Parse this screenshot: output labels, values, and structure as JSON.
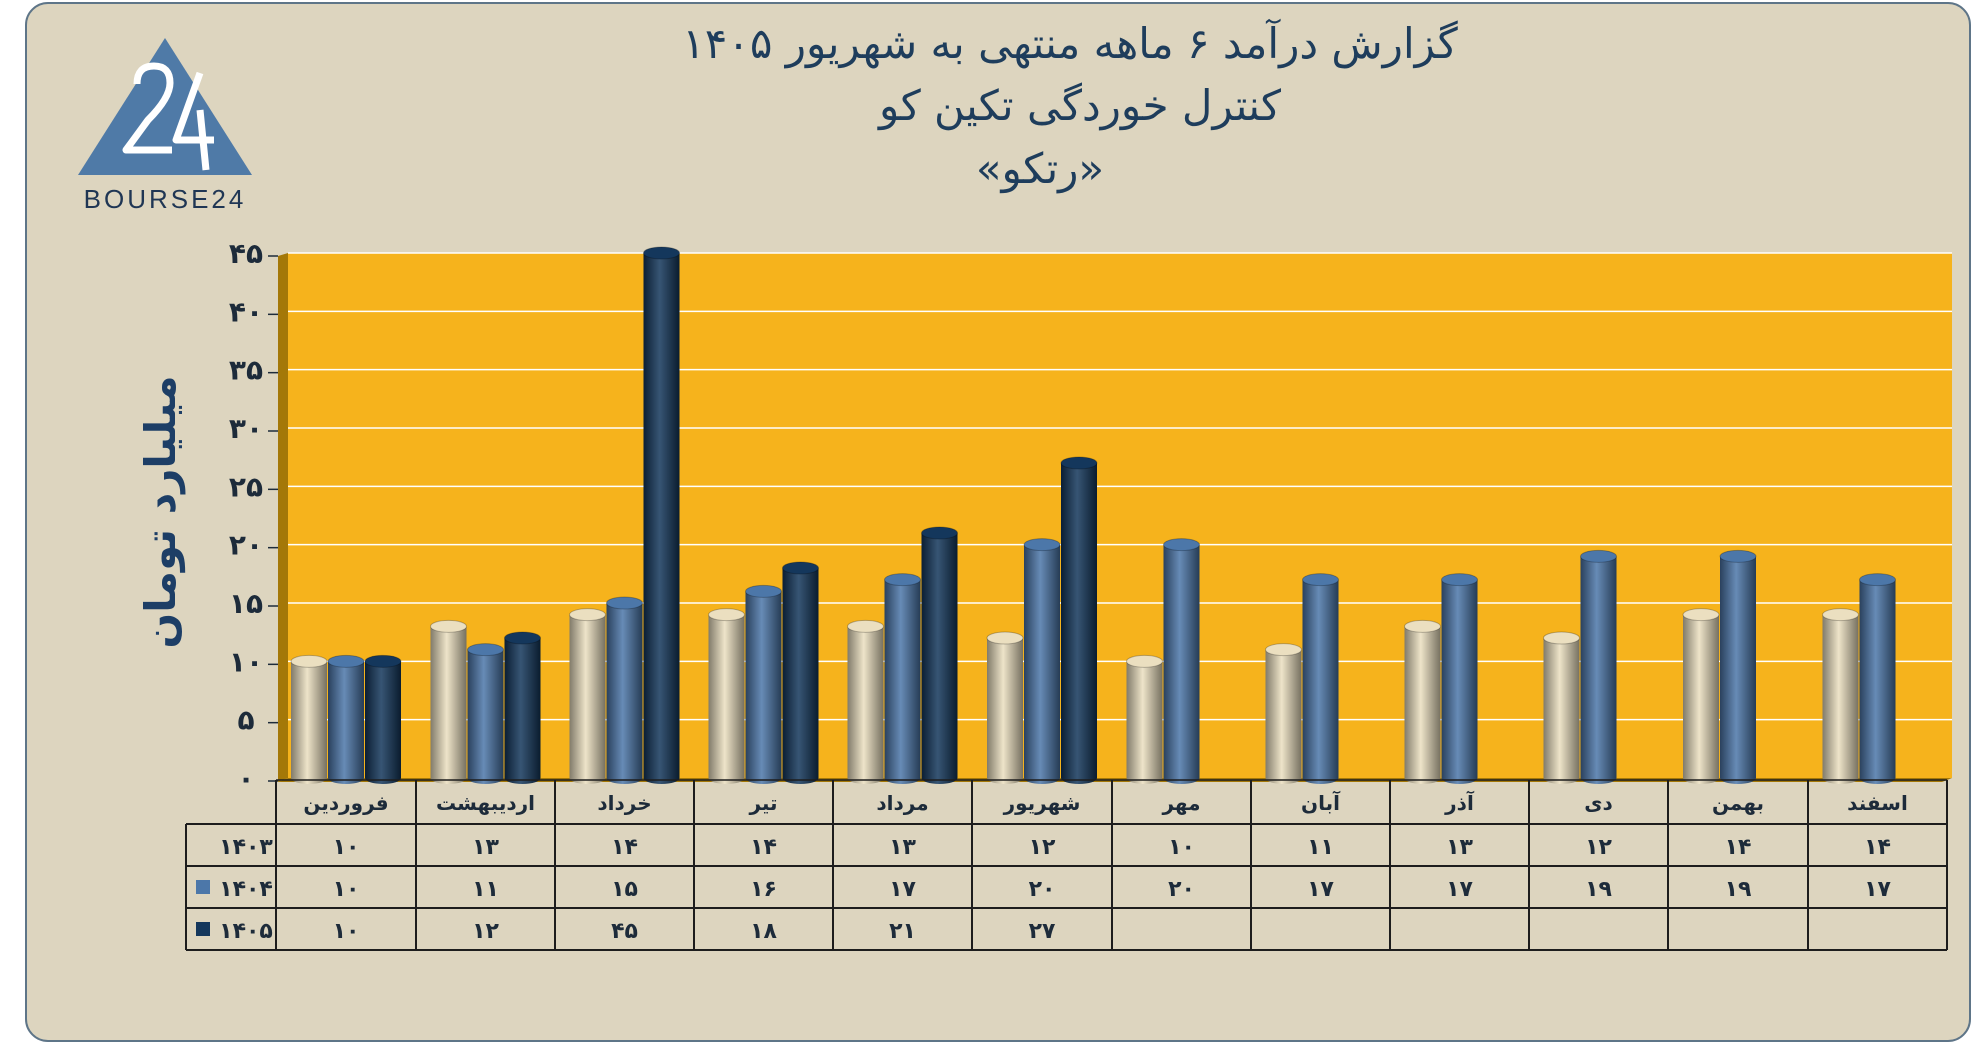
{
  "colors": {
    "panel_bg": "#ddd5bf",
    "panel_border": "#5e7588",
    "plot_bg": "#f6b31c",
    "wall_side": "#a47808",
    "gridline": "#ffffff",
    "axis_text": "#1d2b3a",
    "title_text": "#1e3d5c",
    "ylabel_text": "#1d3e66",
    "logo_blue": "#4f7aa7",
    "logo_text": "#1f3654",
    "table_line": "#1d1d1d",
    "series_1403": "#ebdfc0",
    "series_1404": "#4c77a9",
    "series_1405": "#14375c"
  },
  "header": {
    "logo_text": "BOURSE24",
    "title_line1": "گزارش  درآمد ۶ ماهه منتهی به شهریور ۱۴۰۵",
    "title_line2": "کنترل خوردگی تکین کو",
    "title_line3": "«رتکو»"
  },
  "chart_data": {
    "type": "bar",
    "title": "گزارش  درآمد ۶ ماهه منتهی به شهریور ۱۴۰۵ کنترل خوردگی تکین کو «رتکو»",
    "ylabel": "میلیارد تومان",
    "ylim": [
      0,
      45
    ],
    "yticks": [
      0,
      5,
      10,
      15,
      20,
      25,
      30,
      35,
      40,
      45
    ],
    "ytick_labels": [
      "۰",
      "۵",
      "۱۰",
      "۱۵",
      "۲۰",
      "۲۵",
      "۳۰",
      "۳۵",
      "۴۰",
      "۴۵"
    ],
    "grid": true,
    "categories": [
      "فروردین",
      "اردیبهشت",
      "خرداد",
      "تیر",
      "مرداد",
      "شهریور",
      "مهر",
      "آبان",
      "آذر",
      "دی",
      "بهمن",
      "اسفند"
    ],
    "series": [
      {
        "name": "۱۴۰۳",
        "color": "#ebdfc0",
        "values": [
          10,
          13,
          14,
          14,
          13,
          12,
          10,
          11,
          13,
          12,
          14,
          14
        ],
        "labels": [
          "۱۰",
          "۱۳",
          "۱۴",
          "۱۴",
          "۱۳",
          "۱۲",
          "۱۰",
          "۱۱",
          "۱۳",
          "۱۲",
          "۱۴",
          "۱۴"
        ]
      },
      {
        "name": "۱۴۰۴",
        "color": "#4c77a9",
        "values": [
          10,
          11,
          15,
          16,
          17,
          20,
          20,
          17,
          17,
          19,
          19,
          17
        ],
        "labels": [
          "۱۰",
          "۱۱",
          "۱۵",
          "۱۶",
          "۱۷",
          "۲۰",
          "۲۰",
          "۱۷",
          "۱۷",
          "۱۹",
          "۱۹",
          "۱۷"
        ]
      },
      {
        "name": "۱۴۰۵",
        "color": "#14375c",
        "values": [
          10,
          12,
          45,
          18,
          21,
          27,
          null,
          null,
          null,
          null,
          null,
          null
        ],
        "labels": [
          "۱۰",
          "۱۲",
          "۴۵",
          "۱۸",
          "۲۱",
          "۲۷",
          "",
          "",
          "",
          "",
          "",
          ""
        ]
      }
    ]
  }
}
